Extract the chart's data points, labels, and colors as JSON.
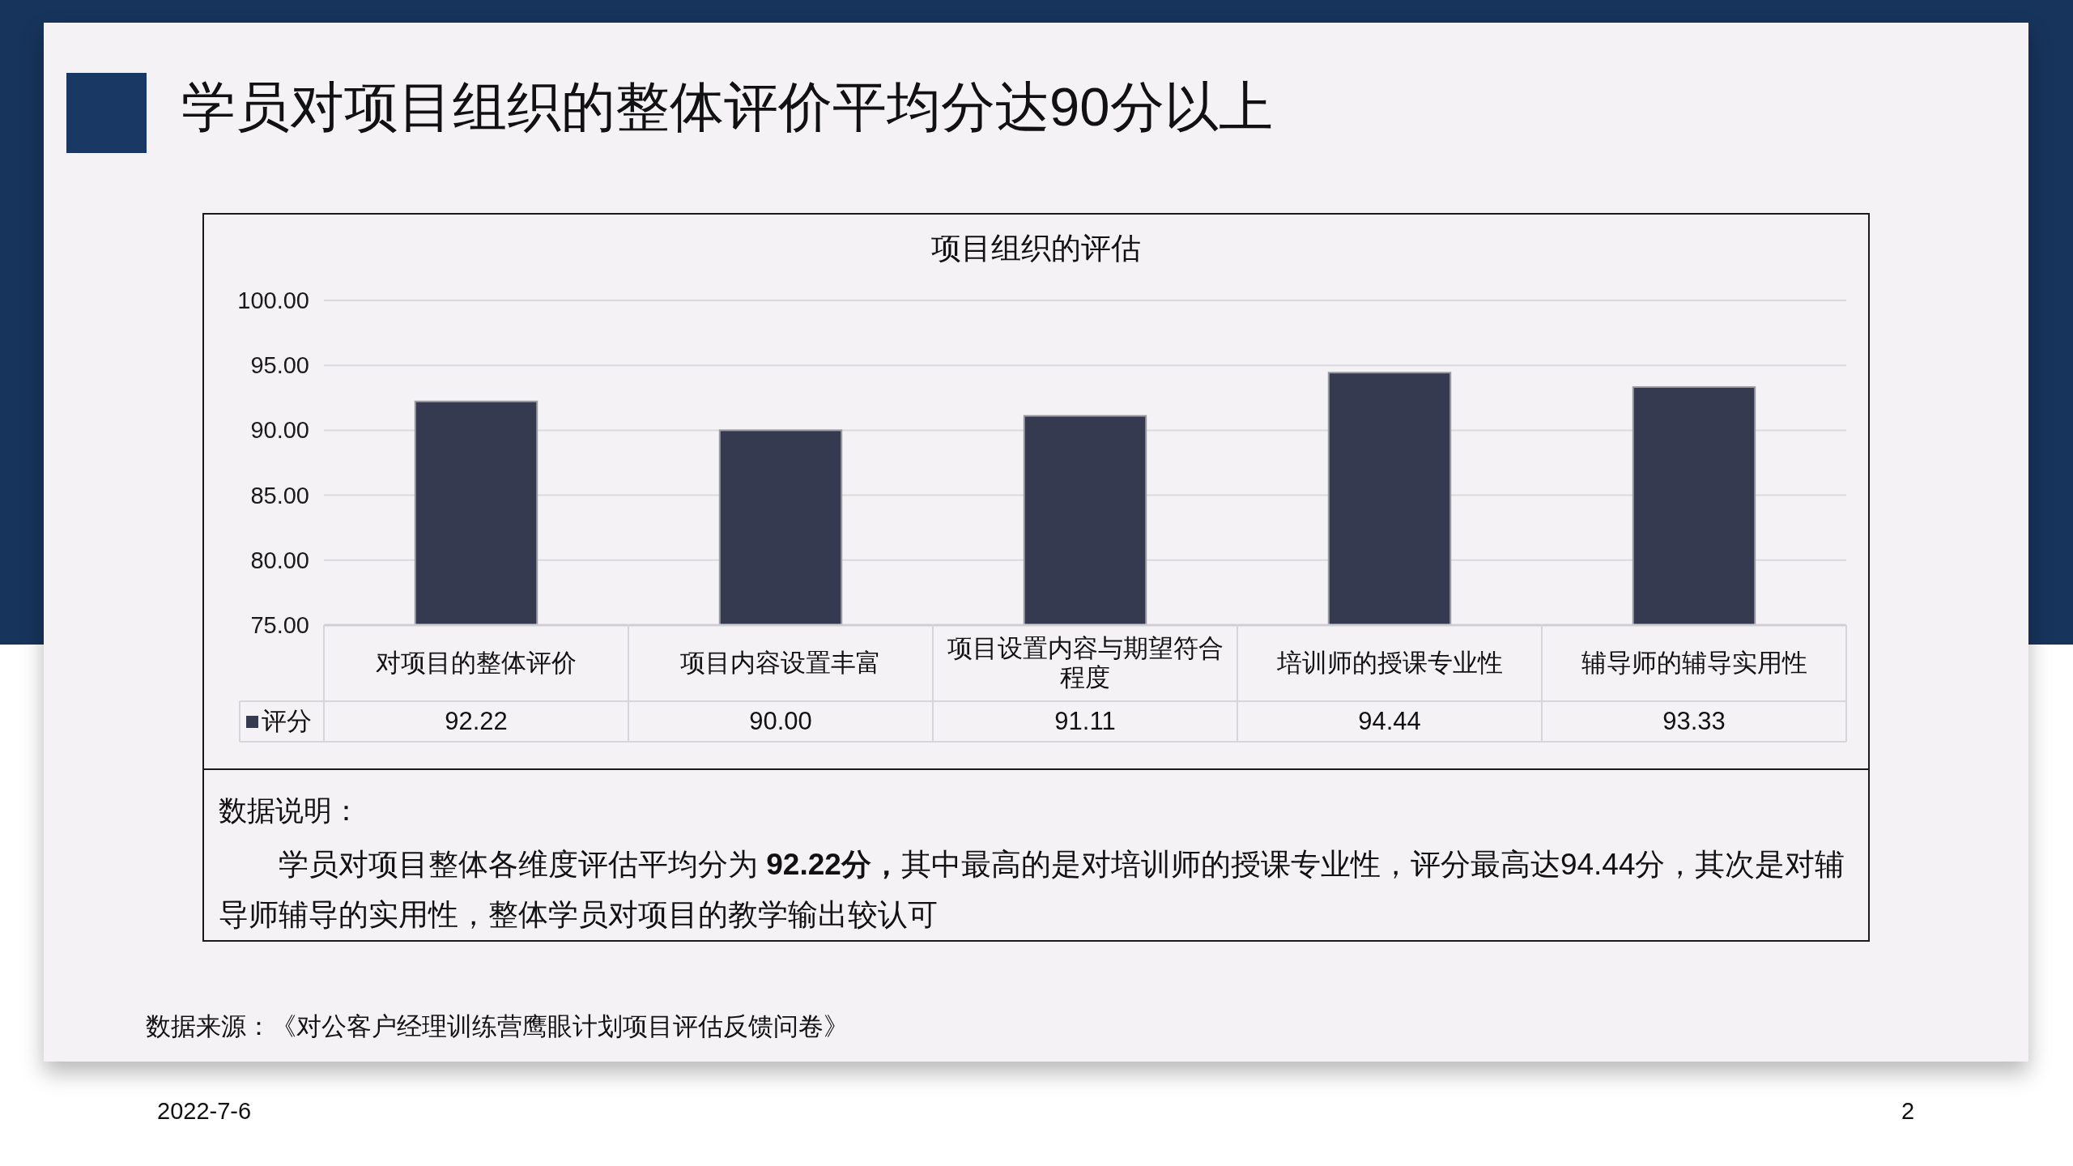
{
  "chart_data": {
    "type": "bar",
    "title": "学员对项目组织的整体评价平均分达90分以上",
    "subtitle": "项目组织的评估",
    "categories": [
      "对项目的整体评价",
      "项目内容设置丰富",
      "项目设置内容与期望符合程度",
      "培训师的授课专业性",
      "辅导师的辅导实用性"
    ],
    "series": [
      {
        "name": "评分",
        "color": "#363a51",
        "values": [
          92.22,
          90.0,
          91.11,
          94.44,
          93.33
        ],
        "value_labels": [
          "92.22",
          "90.00",
          "91.11",
          "94.44",
          "93.33"
        ]
      }
    ],
    "ylim": [
      75,
      100
    ],
    "yticks": [
      {
        "value": 75,
        "label": "75.00"
      },
      {
        "value": 80,
        "label": "80.00"
      },
      {
        "value": 85,
        "label": "85.00"
      },
      {
        "value": 90,
        "label": "90.00"
      },
      {
        "value": 95,
        "label": "95.00"
      },
      {
        "value": 100,
        "label": "100.00"
      }
    ],
    "grid": "y",
    "legend": "bottom",
    "annotations": [
      "数据说明：",
      "学员对项目整体各维度评估平均分为 **92.22分，**其中最高的是对培训师的授课专业性，评分最高达94.44分，其次是对辅导师辅导的实用性，整体学员对项目的教学输出较认可",
      "数据来源：《对公客户经理训练营鹰眼计划项目评估反馈问卷》",
      "2022-7-6",
      "2"
    ]
  }
}
